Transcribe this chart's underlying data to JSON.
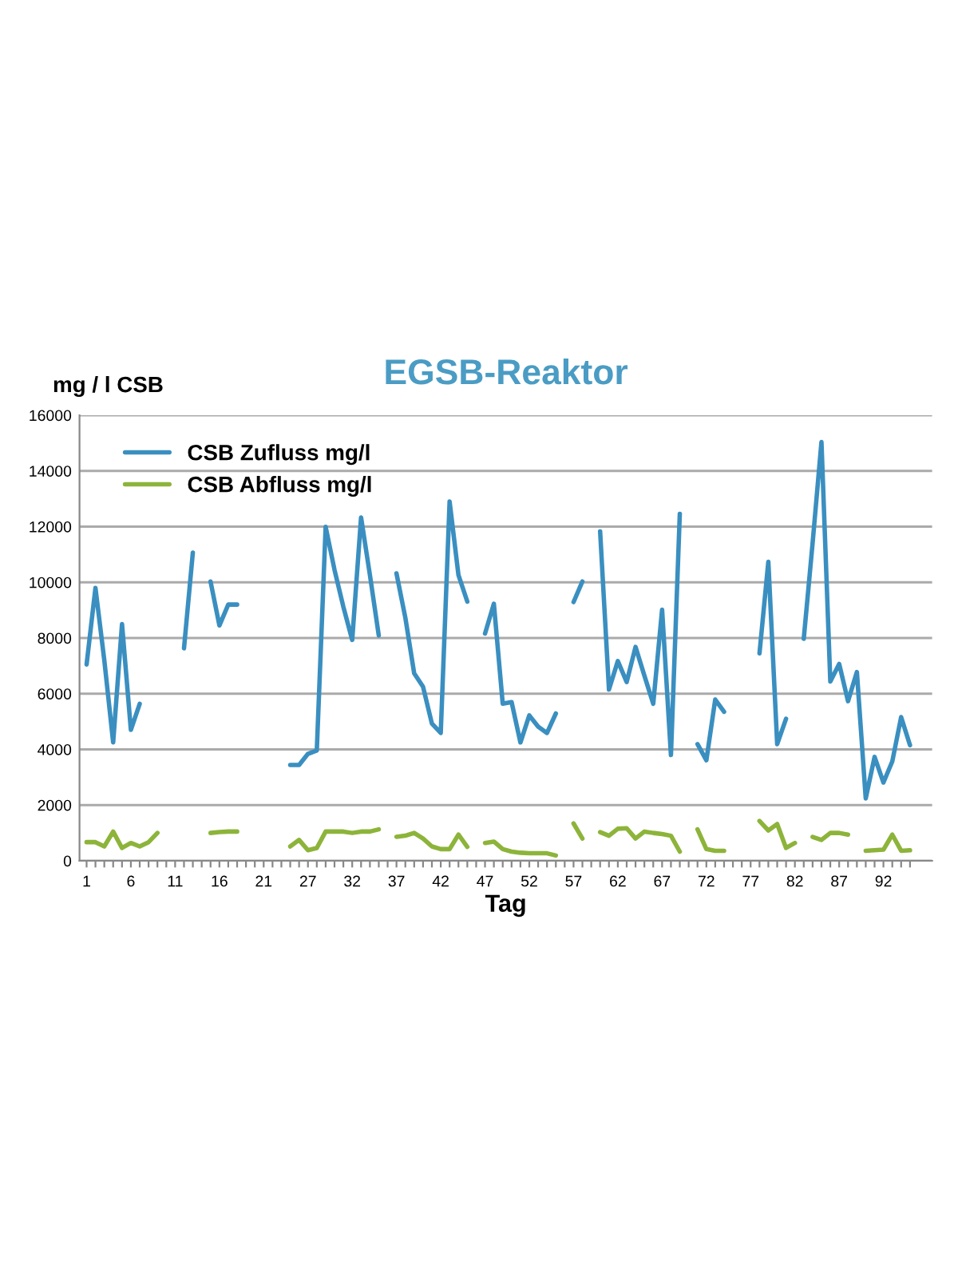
{
  "chart_data": {
    "type": "line",
    "title": "EGSB-Reaktor",
    "xlabel": "Tag",
    "ylabel": "mg / l CSB",
    "categories": [
      "1",
      null,
      null,
      null,
      null,
      "6",
      null,
      null,
      null,
      null,
      "11",
      null,
      null,
      null,
      null,
      "16",
      null,
      null,
      null,
      null,
      "21",
      null,
      null,
      null,
      null,
      "27",
      null,
      null,
      null,
      null,
      "32",
      null,
      null,
      null,
      null,
      "37",
      null,
      null,
      null,
      null,
      "42",
      null,
      null,
      null,
      null,
      "47",
      null,
      null,
      null,
      null,
      "52",
      null,
      null,
      null,
      null,
      "57",
      null,
      null,
      null,
      null,
      "62",
      null,
      null,
      null,
      null,
      "67",
      null,
      null,
      null,
      null,
      "72",
      null,
      null,
      null,
      null,
      "77",
      null,
      null,
      null,
      null,
      "82",
      null,
      null,
      null,
      null,
      "87",
      null,
      null,
      null,
      null,
      "92",
      null,
      null,
      null
    ],
    "series": [
      {
        "name": "CSB Zufluss mg/l",
        "color": "#3a8fc0",
        "values": [
          7050,
          9800,
          7200,
          4250,
          8500,
          4700,
          5640,
          null,
          null,
          null,
          null,
          7630,
          11070,
          null,
          10030,
          8450,
          9200,
          9200,
          null,
          null,
          null,
          null,
          null,
          3440,
          3440,
          3840,
          3960,
          11990,
          10450,
          9120,
          7930,
          12330,
          10260,
          8090,
          null,
          10320,
          8730,
          6730,
          6250,
          4930,
          4590,
          12900,
          10260,
          9310,
          null,
          8160,
          9230,
          5640,
          5700,
          4250,
          5220,
          4820,
          4590,
          5290,
          null,
          9290,
          10030,
          null,
          11830,
          6150,
          7170,
          6420,
          7680,
          6650,
          5640,
          9020,
          3800,
          12460,
          null,
          4190,
          3610,
          5790,
          5350,
          null,
          null,
          null,
          7450,
          10740,
          4190,
          5100,
          null,
          7970,
          11410,
          15040,
          6440,
          7070,
          5730,
          6780,
          2240,
          3730,
          2810,
          3570,
          5160,
          4150
        ]
      },
      {
        "name": "CSB Abfluss mg/l",
        "color": "#8db43a",
        "values": [
          670,
          670,
          516,
          1050,
          460,
          640,
          516,
          670,
          1000,
          null,
          null,
          null,
          null,
          null,
          1000,
          1030,
          1050,
          1050,
          null,
          null,
          null,
          null,
          null,
          516,
          750,
          380,
          460,
          1050,
          1050,
          1050,
          1000,
          1050,
          1050,
          1130,
          null,
          860,
          900,
          1000,
          800,
          516,
          420,
          420,
          940,
          500,
          null,
          640,
          690,
          420,
          330,
          290,
          270,
          270,
          270,
          190,
          null,
          1340,
          800,
          null,
          1030,
          900,
          1150,
          1170,
          800,
          1050,
          1000,
          960,
          900,
          330,
          null,
          1130,
          420,
          360,
          360,
          null,
          null,
          null,
          1430,
          1090,
          1320,
          460,
          640,
          null,
          860,
          750,
          1000,
          1000,
          940,
          null,
          360,
          380,
          400,
          940,
          360,
          380
        ]
      }
    ],
    "ylim": [
      0,
      16000
    ],
    "yticks": [
      0,
      2000,
      4000,
      6000,
      8000,
      10000,
      12000,
      14000,
      16000
    ],
    "grid": "y",
    "legend": "top left",
    "marker": "none",
    "line_style": "solid"
  }
}
